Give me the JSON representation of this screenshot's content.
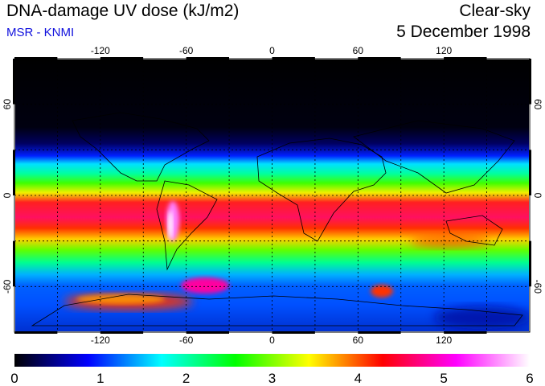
{
  "header": {
    "title": "DNA-damage UV dose (kJ/m2)",
    "source": "MSR - KNMI",
    "condition": "Clear-sky",
    "date": "5 December 1998"
  },
  "map": {
    "projection": "equirectangular",
    "lon_range": [
      -180,
      180
    ],
    "lat_range": [
      -90,
      90
    ],
    "lon_ticks": [
      -120,
      -60,
      0,
      60,
      120
    ],
    "lat_ticks": [
      60,
      0,
      -60
    ],
    "grid_spacing_deg": 30,
    "grid_style": "dashed"
  },
  "colorbar": {
    "min": 0,
    "max": 6,
    "tick_labels": [
      "0",
      "1",
      "2",
      "3",
      "4",
      "5",
      "6"
    ],
    "colors": [
      "#000000",
      "#0000ff",
      "#00ffff",
      "#00ff00",
      "#ffff00",
      "#ff0000",
      "#ff00ff",
      "#ffffff"
    ]
  }
}
